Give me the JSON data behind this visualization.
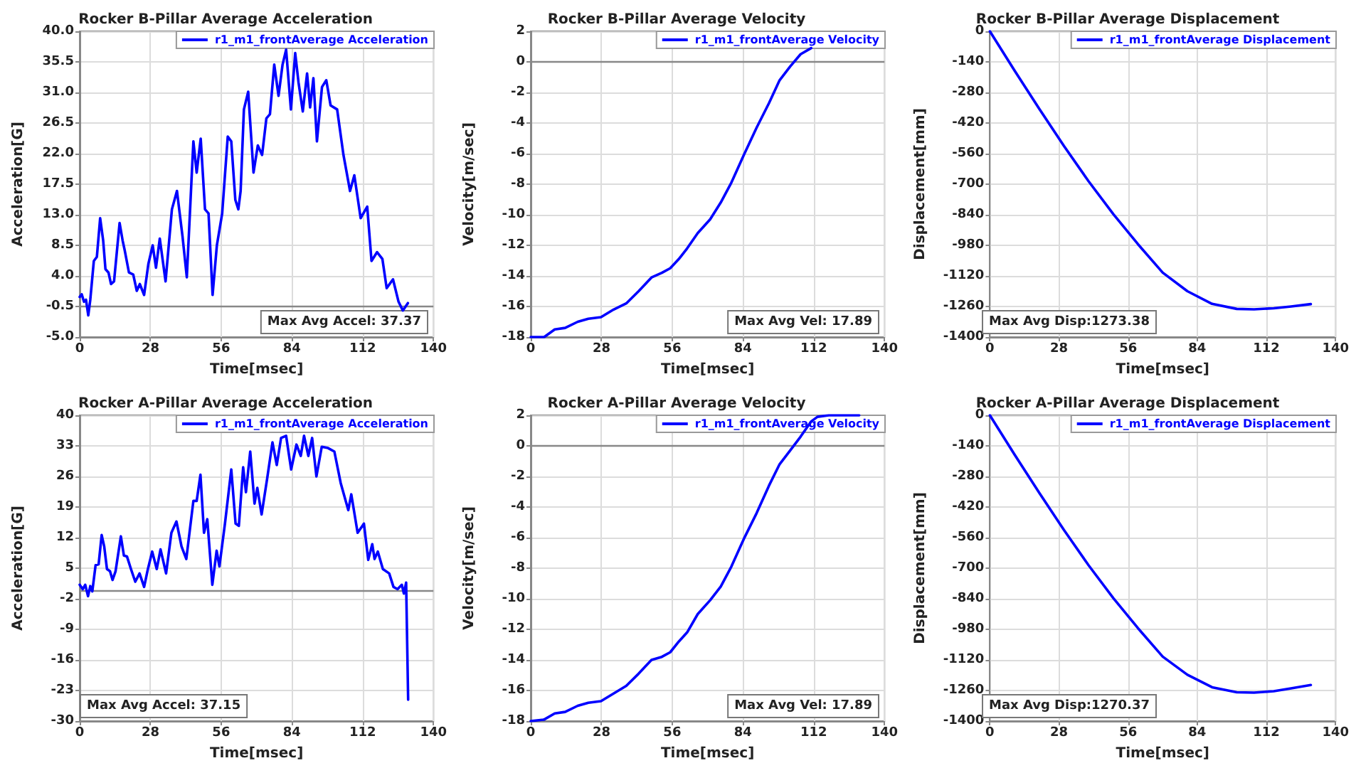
{
  "chart_data": [
    {
      "type": "line",
      "title": "Rocker B-Pillar Average Acceleration",
      "xlabel": "Time[msec]",
      "ylabel": "Acceleration[G]",
      "annotations": [
        "Max Avg Accel: 37.37"
      ],
      "xlim": [
        0,
        140
      ],
      "xticks": [
        0,
        28,
        56,
        84,
        112,
        140
      ],
      "ylim": [
        -5,
        40
      ],
      "yticks": [
        {
          "value": -5,
          "label": "-5.0"
        },
        -0.5,
        {
          "value": 4,
          "label": "4.0"
        },
        8.5,
        {
          "value": 13,
          "label": "13.0"
        },
        17.5,
        {
          "value": 22,
          "label": "22.0"
        },
        26.5,
        {
          "value": 31,
          "label": "31.0"
        },
        35.5,
        {
          "value": 40,
          "label": "40.0"
        }
      ],
      "grid": true,
      "legend": "top right",
      "ref_lines": [
        {
          "axis": "y",
          "value": -0.5
        }
      ],
      "series": [
        {
          "name": "r1_m1_frontAverage Acceleration",
          "color": "#0000ff",
          "x": [
            0,
            0.8,
            1.7,
            2.5,
            3.4,
            4.2,
            5.6,
            6.8,
            8.1,
            9.3,
            10.2,
            11.4,
            12.4,
            13.6,
            15.8,
            17,
            17.8,
            19.5,
            21.2,
            22.6,
            23.8,
            25.5,
            27.2,
            28.9,
            30.2,
            31.7,
            34,
            36.5,
            38.5,
            40.7,
            42.4,
            45,
            46.3,
            47.9,
            49.6,
            51,
            52.6,
            54.3,
            56.4,
            58.6,
            60,
            61.6,
            62.8,
            63.7,
            65,
            66.7,
            68.8,
            70.5,
            72.2,
            73.9,
            75.3,
            77,
            78.7,
            80.3,
            81.7,
            83.6,
            85.3,
            86.6,
            88.3,
            90,
            91.2,
            92.5,
            93.9,
            95.9,
            97.6,
            99.3,
            101.9,
            104.4,
            107,
            108.7,
            111.2,
            113.8,
            115.5,
            117.7,
            119.8,
            121.5,
            124,
            126.2,
            127.9,
            129.9
          ],
          "values": [
            0.9,
            1.3,
            0.2,
            0.5,
            -1.8,
            0.5,
            6.2,
            6.8,
            12.5,
            9.2,
            5.0,
            4.5,
            2.8,
            3.2,
            11.8,
            9.2,
            7.8,
            4.5,
            4.2,
            1.8,
            2.8,
            1.2,
            5.8,
            8.5,
            5.2,
            9.5,
            3.2,
            13.8,
            16.5,
            9.8,
            3.8,
            23.8,
            19.2,
            24.2,
            13.8,
            13.2,
            1.2,
            8.5,
            13.2,
            24.5,
            23.8,
            15.2,
            13.8,
            16.5,
            28.5,
            31.1,
            19.2,
            23.2,
            21.8,
            27.2,
            27.8,
            35.1,
            30.5,
            35.1,
            37.3,
            28.5,
            36.8,
            32.5,
            28.2,
            33.8,
            28.8,
            33.1,
            23.8,
            31.8,
            32.8,
            29.1,
            28.5,
            21.8,
            16.5,
            18.8,
            12.5,
            14.2,
            6.2,
            7.5,
            6.5,
            2.2,
            3.5,
            0.2,
            -1.1,
            0.0
          ]
        }
      ]
    },
    {
      "type": "line",
      "title": "Rocker B-Pillar Average Velocity",
      "xlabel": "Time[msec]",
      "ylabel": "Velocity[m/sec]",
      "annotations": [
        "Max Avg Vel: 17.89"
      ],
      "xlim": [
        0,
        140
      ],
      "xticks": [
        0,
        28,
        56,
        84,
        112,
        140
      ],
      "ylim": [
        -18,
        2
      ],
      "yticks": [
        -18,
        -16,
        -14,
        -12,
        -10,
        -8,
        -6,
        -4,
        -2,
        0,
        2
      ],
      "grid": true,
      "legend": "top right",
      "ref_lines": [
        {
          "axis": "y",
          "value": 0
        }
      ],
      "series": [
        {
          "name": "r1_m1_frontAverage Velocity",
          "color": "#0000ff",
          "x": [
            0,
            5.3,
            9.5,
            13.6,
            18.6,
            22.8,
            27.8,
            32.8,
            37.8,
            42.7,
            47.8,
            51.9,
            55.2,
            58.6,
            61.9,
            66.1,
            71,
            75.2,
            79.4,
            84.3,
            89.4,
            94.3,
            98.5,
            102.7,
            106.8,
            111
          ],
          "values": [
            -18,
            -18,
            -17.5,
            -17.4,
            -17,
            -16.8,
            -16.7,
            -16.2,
            -15.8,
            -15,
            -14.1,
            -13.8,
            -13.5,
            -12.9,
            -12.2,
            -11.2,
            -10.3,
            -9.2,
            -7.9,
            -6.1,
            -4.3,
            -2.7,
            -1.2,
            -0.3,
            0.5,
            0.9
          ]
        }
      ]
    },
    {
      "type": "line",
      "title": "Rocker B-Pillar Average Displacement",
      "xlabel": "Time[msec]",
      "ylabel": "Displacement[mm]",
      "annotations": [
        "Max Avg Disp:1273.38"
      ],
      "xlim": [
        0,
        140
      ],
      "xticks": [
        0,
        28,
        56,
        84,
        112,
        140
      ],
      "ylim": [
        -1400,
        0
      ],
      "yticks": [
        -1400,
        -1260,
        -1120,
        -980,
        -840,
        -700,
        -560,
        -420,
        -280,
        -140,
        0
      ],
      "grid": true,
      "legend": "top right",
      "series": [
        {
          "name": "r1_m1_frontAverage Displacement",
          "color": "#0000ff",
          "x": [
            0,
            10,
            20,
            30,
            40,
            50,
            60,
            70,
            80,
            90,
            100,
            107,
            115,
            122,
            130
          ],
          "values": [
            0,
            -180,
            -355,
            -525,
            -687,
            -837,
            -975,
            -1105,
            -1190,
            -1248,
            -1271,
            -1273,
            -1268,
            -1260,
            -1249
          ]
        }
      ]
    },
    {
      "type": "line",
      "title": "Rocker A-Pillar Average Acceleration",
      "xlabel": "Time[msec]",
      "ylabel": "Acceleration[G]",
      "annotations": [
        "Max Avg Accel: 37.15"
      ],
      "xlim": [
        0,
        140
      ],
      "xticks": [
        0,
        28,
        56,
        84,
        112,
        140
      ],
      "ylim": [
        -30,
        40
      ],
      "yticks": [
        -30,
        -23,
        -16,
        -9,
        -2,
        5,
        12,
        19,
        26,
        33,
        40
      ],
      "grid": true,
      "legend": "top right",
      "ref_lines": [
        {
          "axis": "y",
          "value": 0
        }
      ],
      "series": [
        {
          "name": "r1_m1_frontAverage Acceleration",
          "color": "#0000ff",
          "x": [
            0,
            1.2,
            2.2,
            3.3,
            4.2,
            5,
            6.3,
            7.5,
            8.7,
            9.7,
            10.8,
            12,
            13,
            14.2,
            16.3,
            17.5,
            18.7,
            20.3,
            22,
            23.7,
            25.5,
            27,
            28.7,
            30.5,
            32,
            34.2,
            36.3,
            38.3,
            40.3,
            42.2,
            45,
            46.3,
            47.8,
            49.2,
            50.5,
            52.5,
            54.2,
            55.3,
            57.5,
            60,
            61.7,
            63,
            64.7,
            65.8,
            67.5,
            69.2,
            70.3,
            72,
            74.2,
            76.3,
            78,
            79.7,
            81.7,
            83.7,
            85.8,
            87.5,
            88.8,
            90.5,
            92,
            93.7,
            95.8,
            98.3,
            100.8,
            103.3,
            106.3,
            107.5,
            110,
            112.5,
            114.2,
            115.8,
            116.7,
            118,
            120,
            122.5,
            124.2,
            125.8,
            127.5,
            128.3,
            129.2,
            130
          ],
          "values": [
            1.2,
            0.2,
            1.2,
            -1.4,
            0.9,
            -0.3,
            5.7,
            5.9,
            12.6,
            10.0,
            4.8,
            4.3,
            2.3,
            4.3,
            12.3,
            7.9,
            7.7,
            4.8,
            1.9,
            3.8,
            0.7,
            4.8,
            8.8,
            4.8,
            9.3,
            3.8,
            13.1,
            15.7,
            10.0,
            7.1,
            20.4,
            20.4,
            26.4,
            13.1,
            16.2,
            1.2,
            9.0,
            5.4,
            15.2,
            27.6,
            15.2,
            14.7,
            28.1,
            22.4,
            31.7,
            19.8,
            23.4,
            17.3,
            25.5,
            33.8,
            28.6,
            34.8,
            35.3,
            27.6,
            33.3,
            30.7,
            35.3,
            30.7,
            34.8,
            26.0,
            32.8,
            32.5,
            31.7,
            24.5,
            18.3,
            21.9,
            13.1,
            15.2,
            6.9,
            10.5,
            7.1,
            8.8,
            4.8,
            3.8,
            0.7,
            0.2,
            1.2,
            -0.8,
            1.7,
            -25.1
          ]
        }
      ]
    },
    {
      "type": "line",
      "title": "Rocker A-Pillar Average Velocity",
      "xlabel": "Time[msec]",
      "ylabel": "Velocity[m/sec]",
      "annotations": [
        "Max Avg Vel: 17.89"
      ],
      "xlim": [
        0,
        140
      ],
      "xticks": [
        0,
        28,
        56,
        84,
        112,
        140
      ],
      "ylim": [
        -18,
        2
      ],
      "yticks": [
        -18,
        -16,
        -14,
        -12,
        -10,
        -8,
        -6,
        -4,
        -2,
        0,
        2
      ],
      "grid": true,
      "legend": "top right",
      "ref_lines": [
        {
          "axis": "y",
          "value": 0
        }
      ],
      "series": [
        {
          "name": "r1_m1_frontAverage Velocity",
          "color": "#0000ff",
          "x": [
            0,
            5.3,
            9.5,
            13.6,
            18.6,
            22.8,
            27.8,
            32.8,
            37.8,
            42.7,
            47.8,
            51.9,
            55.2,
            58.6,
            61.9,
            66.1,
            71,
            75.2,
            79.4,
            84.3,
            89.4,
            94.3,
            98.5,
            102.7,
            106.8,
            109.3,
            111,
            113.5,
            118,
            125,
            130
          ],
          "values": [
            -18,
            -17.9,
            -17.5,
            -17.4,
            -17,
            -16.8,
            -16.7,
            -16.2,
            -15.7,
            -14.9,
            -14,
            -13.8,
            -13.5,
            -12.8,
            -12.2,
            -11,
            -10.1,
            -9.2,
            -7.9,
            -6.1,
            -4.4,
            -2.6,
            -1.2,
            -0.3,
            0.6,
            1.2,
            1.6,
            1.9,
            2,
            2,
            2
          ]
        }
      ]
    },
    {
      "type": "line",
      "title": "Rocker A-Pillar Average Displacement",
      "xlabel": "Time[msec]",
      "ylabel": "Displacement[mm]",
      "annotations": [
        "Max Avg Disp:1270.37"
      ],
      "xlim": [
        0,
        140
      ],
      "xticks": [
        0,
        28,
        56,
        84,
        112,
        140
      ],
      "ylim": [
        -1400,
        0
      ],
      "yticks": [
        -1400,
        -1260,
        -1120,
        -980,
        -840,
        -700,
        -560,
        -420,
        -280,
        -140,
        0
      ],
      "grid": true,
      "legend": "top right",
      "series": [
        {
          "name": "r1_m1_frontAverage Displacement",
          "color": "#0000ff",
          "x": [
            0,
            10,
            20,
            30,
            40,
            50,
            60,
            70,
            80,
            90,
            100,
            107,
            115,
            122,
            130
          ],
          "values": [
            0,
            -180,
            -355,
            -525,
            -687,
            -837,
            -975,
            -1105,
            -1188,
            -1245,
            -1268,
            -1270,
            -1263,
            -1250,
            -1235
          ]
        }
      ]
    }
  ]
}
